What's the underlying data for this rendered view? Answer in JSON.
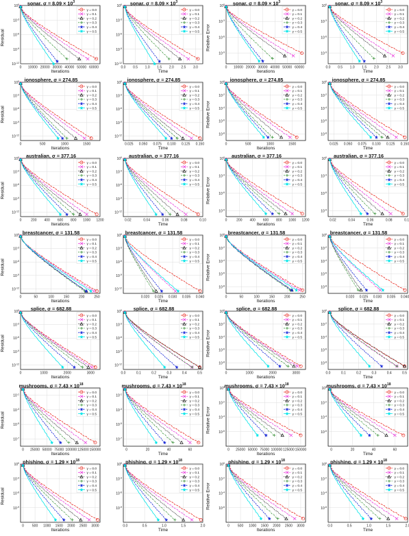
{
  "gamma_symbol": "γ",
  "sigma_symbol": "σ",
  "gamma_values": [
    "0.0",
    "0.1",
    "0.2",
    "0.3",
    "0.4",
    "0.5"
  ],
  "series_colors": [
    "#e8281e",
    "#e83cdc",
    "#111111",
    "#2e8b2e",
    "#1f2fd8",
    "#00e5e8"
  ],
  "series_markers": [
    "circle",
    "x",
    "triangle",
    "plus",
    "star",
    "star6"
  ],
  "column_axes": [
    {
      "ylabel": "Residual",
      "xlabel": "Iterations"
    },
    {
      "ylabel": "",
      "xlabel": "Time"
    },
    {
      "ylabel": "Relative Error",
      "xlabel": "Iterations"
    },
    {
      "ylabel": "",
      "xlabel": "Time"
    }
  ],
  "chart_data": [
    {
      "type": "line",
      "dataset": "sonar",
      "sigma": "8.09 × 10",
      "sigma_exp": "3",
      "yscale": "log",
      "residual": {
        "ylim": [
          1e-12,
          1
        ],
        "y_ticks": [
          "10^0",
          "10^-3",
          "10^-6",
          "10^-9",
          "10^-12"
        ],
        "iter_xlim": [
          0,
          65000
        ],
        "iter_ticks": [
          "0",
          "10000",
          "20000",
          "30000",
          "40000",
          "50000",
          "60000"
        ],
        "time_xlim": [
          0,
          3.3
        ],
        "time_ticks": [
          "0.0",
          "0.5",
          "1.0",
          "1.5",
          "2.0",
          "2.5",
          "3.0"
        ],
        "iter_end": [
          62000,
          55000,
          48000,
          38000,
          30000,
          27000
        ],
        "time_end": [
          3.1,
          2.7,
          2.35,
          1.9,
          1.5,
          1.3
        ],
        "end_log": [
          -11,
          -11,
          -11,
          -11,
          -11.5,
          -12
        ]
      },
      "relerr": {
        "ylim": [
          1e-11,
          1
        ],
        "y_ticks": [
          "10^0",
          "10^-3",
          "10^-6",
          "10^-9"
        ],
        "iter_end": [
          62000,
          55000,
          48000,
          38000,
          30000,
          27000
        ],
        "time_end": [
          3.1,
          2.7,
          2.35,
          1.9,
          1.5,
          1.3
        ],
        "end_log": [
          -9,
          -9.5,
          -9.5,
          -10,
          -10.5,
          -10.5
        ]
      }
    },
    {
      "type": "line",
      "dataset": "ionosphere",
      "sigma": "274.85",
      "sigma_exp": "",
      "yscale": "log",
      "residual": {
        "ylim": [
          1e-13,
          1
        ],
        "y_ticks": [
          "10^0",
          "10^-3",
          "10^-6",
          "10^-9",
          "10^-12"
        ],
        "iter_xlim": [
          0,
          1800
        ],
        "iter_ticks": [
          "0",
          "500",
          "1000",
          "1500"
        ],
        "time_xlim": [
          0.015,
          0.155
        ],
        "time_ticks": [
          "0.025",
          "0.050",
          "0.075",
          "0.100",
          "0.125",
          "0.150"
        ],
        "iter_end": [
          1600,
          1450,
          1250,
          1050,
          950,
          850
        ],
        "time_end": [
          0.15,
          0.135,
          0.12,
          0.11,
          0.1,
          0.09
        ],
        "end_log": [
          -12.5,
          -12.5,
          -12.5,
          -12.5,
          -12.5,
          -12.5
        ]
      },
      "relerr": {
        "ylim": [
          1e-09,
          1
        ],
        "y_ticks": [
          "10^0",
          "10^-2",
          "10^-4",
          "10^-6",
          "10^-8"
        ],
        "iter_end": [
          1600,
          1450,
          1250,
          1050,
          950,
          850
        ],
        "time_end": [
          0.15,
          0.135,
          0.12,
          0.11,
          0.1,
          0.09
        ],
        "end_log": [
          -8.5,
          -8.5,
          -8.5,
          -8.5,
          -8.5,
          -8.5
        ]
      }
    },
    {
      "type": "line",
      "dataset": "australian",
      "sigma": "377.16",
      "sigma_exp": "",
      "yscale": "log",
      "residual": {
        "ylim": [
          1e-13,
          1
        ],
        "y_ticks": [
          "10^0",
          "10^-3",
          "10^-6",
          "10^-9",
          "10^-12"
        ],
        "iter_xlim": [
          0,
          1200
        ],
        "iter_ticks": [
          "0",
          "200",
          "400",
          "600",
          "800",
          "1000",
          "1200"
        ],
        "time_xlim": [
          0.015,
          0.1
        ],
        "time_ticks": [
          "0.02",
          "0.04",
          "0.06",
          "0.08",
          "0.10"
        ],
        "iter_end": [
          1150,
          1000,
          900,
          800,
          700,
          600
        ],
        "time_end": [
          0.095,
          0.082,
          0.073,
          0.065,
          0.057,
          0.05
        ],
        "end_log": [
          -12.5,
          -12.5,
          -12.5,
          -12.5,
          -12.5,
          -12.5
        ]
      },
      "relerr": {
        "ylim": [
          1e-10,
          1
        ],
        "y_ticks": [
          "10^0",
          "10^-3",
          "10^-6",
          "10^-9"
        ],
        "iter_end": [
          1150,
          1000,
          900,
          800,
          700,
          600
        ],
        "time_end": [
          0.095,
          0.082,
          0.073,
          0.065,
          0.057,
          0.05
        ],
        "end_log": [
          -9.5,
          -9.5,
          -9.5,
          -9.5,
          -9.5,
          -9.5
        ]
      }
    },
    {
      "type": "line",
      "dataset": "breastcancer",
      "sigma": "131.58",
      "sigma_exp": "",
      "yscale": "log",
      "residual": {
        "ylim": [
          1e-13,
          1
        ],
        "y_ticks": [
          "10^0",
          "10^-3",
          "10^-6",
          "10^-9",
          "10^-12"
        ],
        "iter_xlim": [
          0,
          260
        ],
        "iter_ticks": [
          "0",
          "50",
          "100",
          "150",
          "200",
          "250"
        ],
        "time_xlim": [
          0.012,
          0.041
        ],
        "time_ticks": [
          "0.020",
          "0.025",
          "0.030",
          "0.035",
          "0.040"
        ],
        "iter_end": [
          250,
          240,
          215,
          210,
          215,
          230
        ],
        "time_end": [
          0.04,
          0.031,
          0.024,
          0.023,
          0.026,
          0.032
        ],
        "end_log": [
          -12.5,
          -12.5,
          -12.5,
          -12.5,
          -12.5,
          -12.5
        ]
      },
      "relerr": {
        "ylim": [
          1e-09,
          1
        ],
        "y_ticks": [
          "10^0",
          "10^-2",
          "10^-4",
          "10^-6",
          "10^-8"
        ],
        "iter_end": [
          250,
          240,
          215,
          210,
          215,
          230
        ],
        "time_end": [
          0.04,
          0.031,
          0.024,
          0.023,
          0.026,
          0.032
        ],
        "end_log": [
          -8.5,
          -8.5,
          -8.5,
          -8.5,
          -8.5,
          -8.5
        ]
      }
    },
    {
      "type": "line",
      "dataset": "splice",
      "sigma": "682.88",
      "sigma_exp": "",
      "yscale": "log",
      "residual": {
        "ylim": [
          1e-13,
          1
        ],
        "y_ticks": [
          "10^0",
          "10^-3",
          "10^-6",
          "10^-9",
          "10^-12"
        ],
        "iter_xlim": [
          0,
          3400
        ],
        "iter_ticks": [
          "0",
          "1000",
          "2000",
          "3000"
        ],
        "time_xlim": [
          0,
          0.52
        ],
        "time_ticks": [
          "0.0",
          "0.1",
          "0.2",
          "0.3",
          "0.4",
          "0.5"
        ],
        "iter_end": [
          3200,
          3050,
          2900,
          2650,
          2300,
          1800
        ],
        "time_end": [
          0.5,
          0.45,
          0.5,
          0.45,
          0.35,
          0.27
        ],
        "end_log": [
          -12.5,
          -12.5,
          -12.5,
          -12.5,
          -12.5,
          -12.5
        ]
      },
      "relerr": {
        "ylim": [
          1e-09,
          1
        ],
        "y_ticks": [
          "10^0",
          "10^-2",
          "10^-4",
          "10^-6",
          "10^-8"
        ],
        "iter_end": [
          3200,
          3050,
          2900,
          2650,
          2300,
          1800
        ],
        "time_end": [
          0.5,
          0.45,
          0.5,
          0.45,
          0.35,
          0.27
        ],
        "end_log": [
          -8.5,
          -8.5,
          -8.5,
          -8.5,
          -8.5,
          -8.5
        ]
      }
    },
    {
      "type": "line",
      "dataset": "mushrooms",
      "sigma": "7.43 × 10",
      "sigma_exp": "18",
      "yscale": "log",
      "residual": {
        "ylim": [
          1e-08,
          1
        ],
        "y_ticks": [
          "10^-1",
          "10^-3",
          "10^-5",
          "10^-7"
        ],
        "iter_xlim": [
          -5000,
          160000
        ],
        "iter_ticks": [
          "0",
          "25000",
          "50000",
          "75000",
          "100000",
          "125000",
          "150000"
        ],
        "time_xlim": [
          -3,
          72
        ],
        "time_ticks": [
          "0",
          "20",
          "40",
          "60"
        ],
        "iter_end": [
          150000,
          130000,
          112000,
          95000,
          78000,
          60000
        ],
        "time_end": [
          68,
          60,
          52,
          44,
          36,
          28
        ],
        "end_log": [
          -7.5,
          -7.5,
          -7.5,
          -7.5,
          -7.5,
          -7.5
        ]
      },
      "relerr": {
        "ylim": [
          1e-08,
          1
        ],
        "y_ticks": [
          "10^0",
          "10^-2",
          "10^-4",
          "10^-6"
        ],
        "iter_end": [
          150000,
          130000,
          112000,
          95000,
          78000,
          60000
        ],
        "time_end": [
          68,
          60,
          52,
          44,
          36,
          28
        ],
        "end_log": [
          -6.5,
          -6.5,
          -6.5,
          -6.5,
          -6.5,
          -6.5
        ]
      }
    },
    {
      "type": "line",
      "dataset": "phishing",
      "sigma": "1.29 × 10",
      "sigma_exp": "18",
      "yscale": "log",
      "residual": {
        "ylim": [
          1e-12,
          1
        ],
        "y_ticks": [
          "10^0",
          "10^-3",
          "10^-6",
          "10^-9"
        ],
        "iter_xlim": [
          -100,
          3200
        ],
        "iter_ticks": [
          "0",
          "500",
          "1000",
          "1500",
          "2000",
          "2500",
          "3000"
        ],
        "time_xlim": [
          -0.05,
          2.0
        ],
        "time_ticks": [
          "0.0",
          "0.5",
          "1.0",
          "1.5",
          "2.0"
        ],
        "iter_end": [
          3100,
          2750,
          2400,
          2050,
          1700,
          1350
        ],
        "time_end": [
          1.95,
          1.72,
          1.5,
          1.28,
          1.06,
          0.85
        ],
        "end_log": [
          -11.5,
          -11.5,
          -11.5,
          -11.5,
          -11.5,
          -11.5
        ]
      },
      "relerr": {
        "ylim": [
          1e-08,
          1
        ],
        "y_ticks": [
          "10^0",
          "10^-2",
          "10^-4",
          "10^-6"
        ],
        "iter_end": [
          3100,
          2750,
          2400,
          2050,
          1700,
          1350
        ],
        "time_end": [
          1.95,
          1.72,
          1.5,
          1.28,
          1.06,
          0.85
        ],
        "end_log": [
          -7.5,
          -7.5,
          -7.5,
          -7.5,
          -7.5,
          -7.5
        ]
      }
    }
  ]
}
